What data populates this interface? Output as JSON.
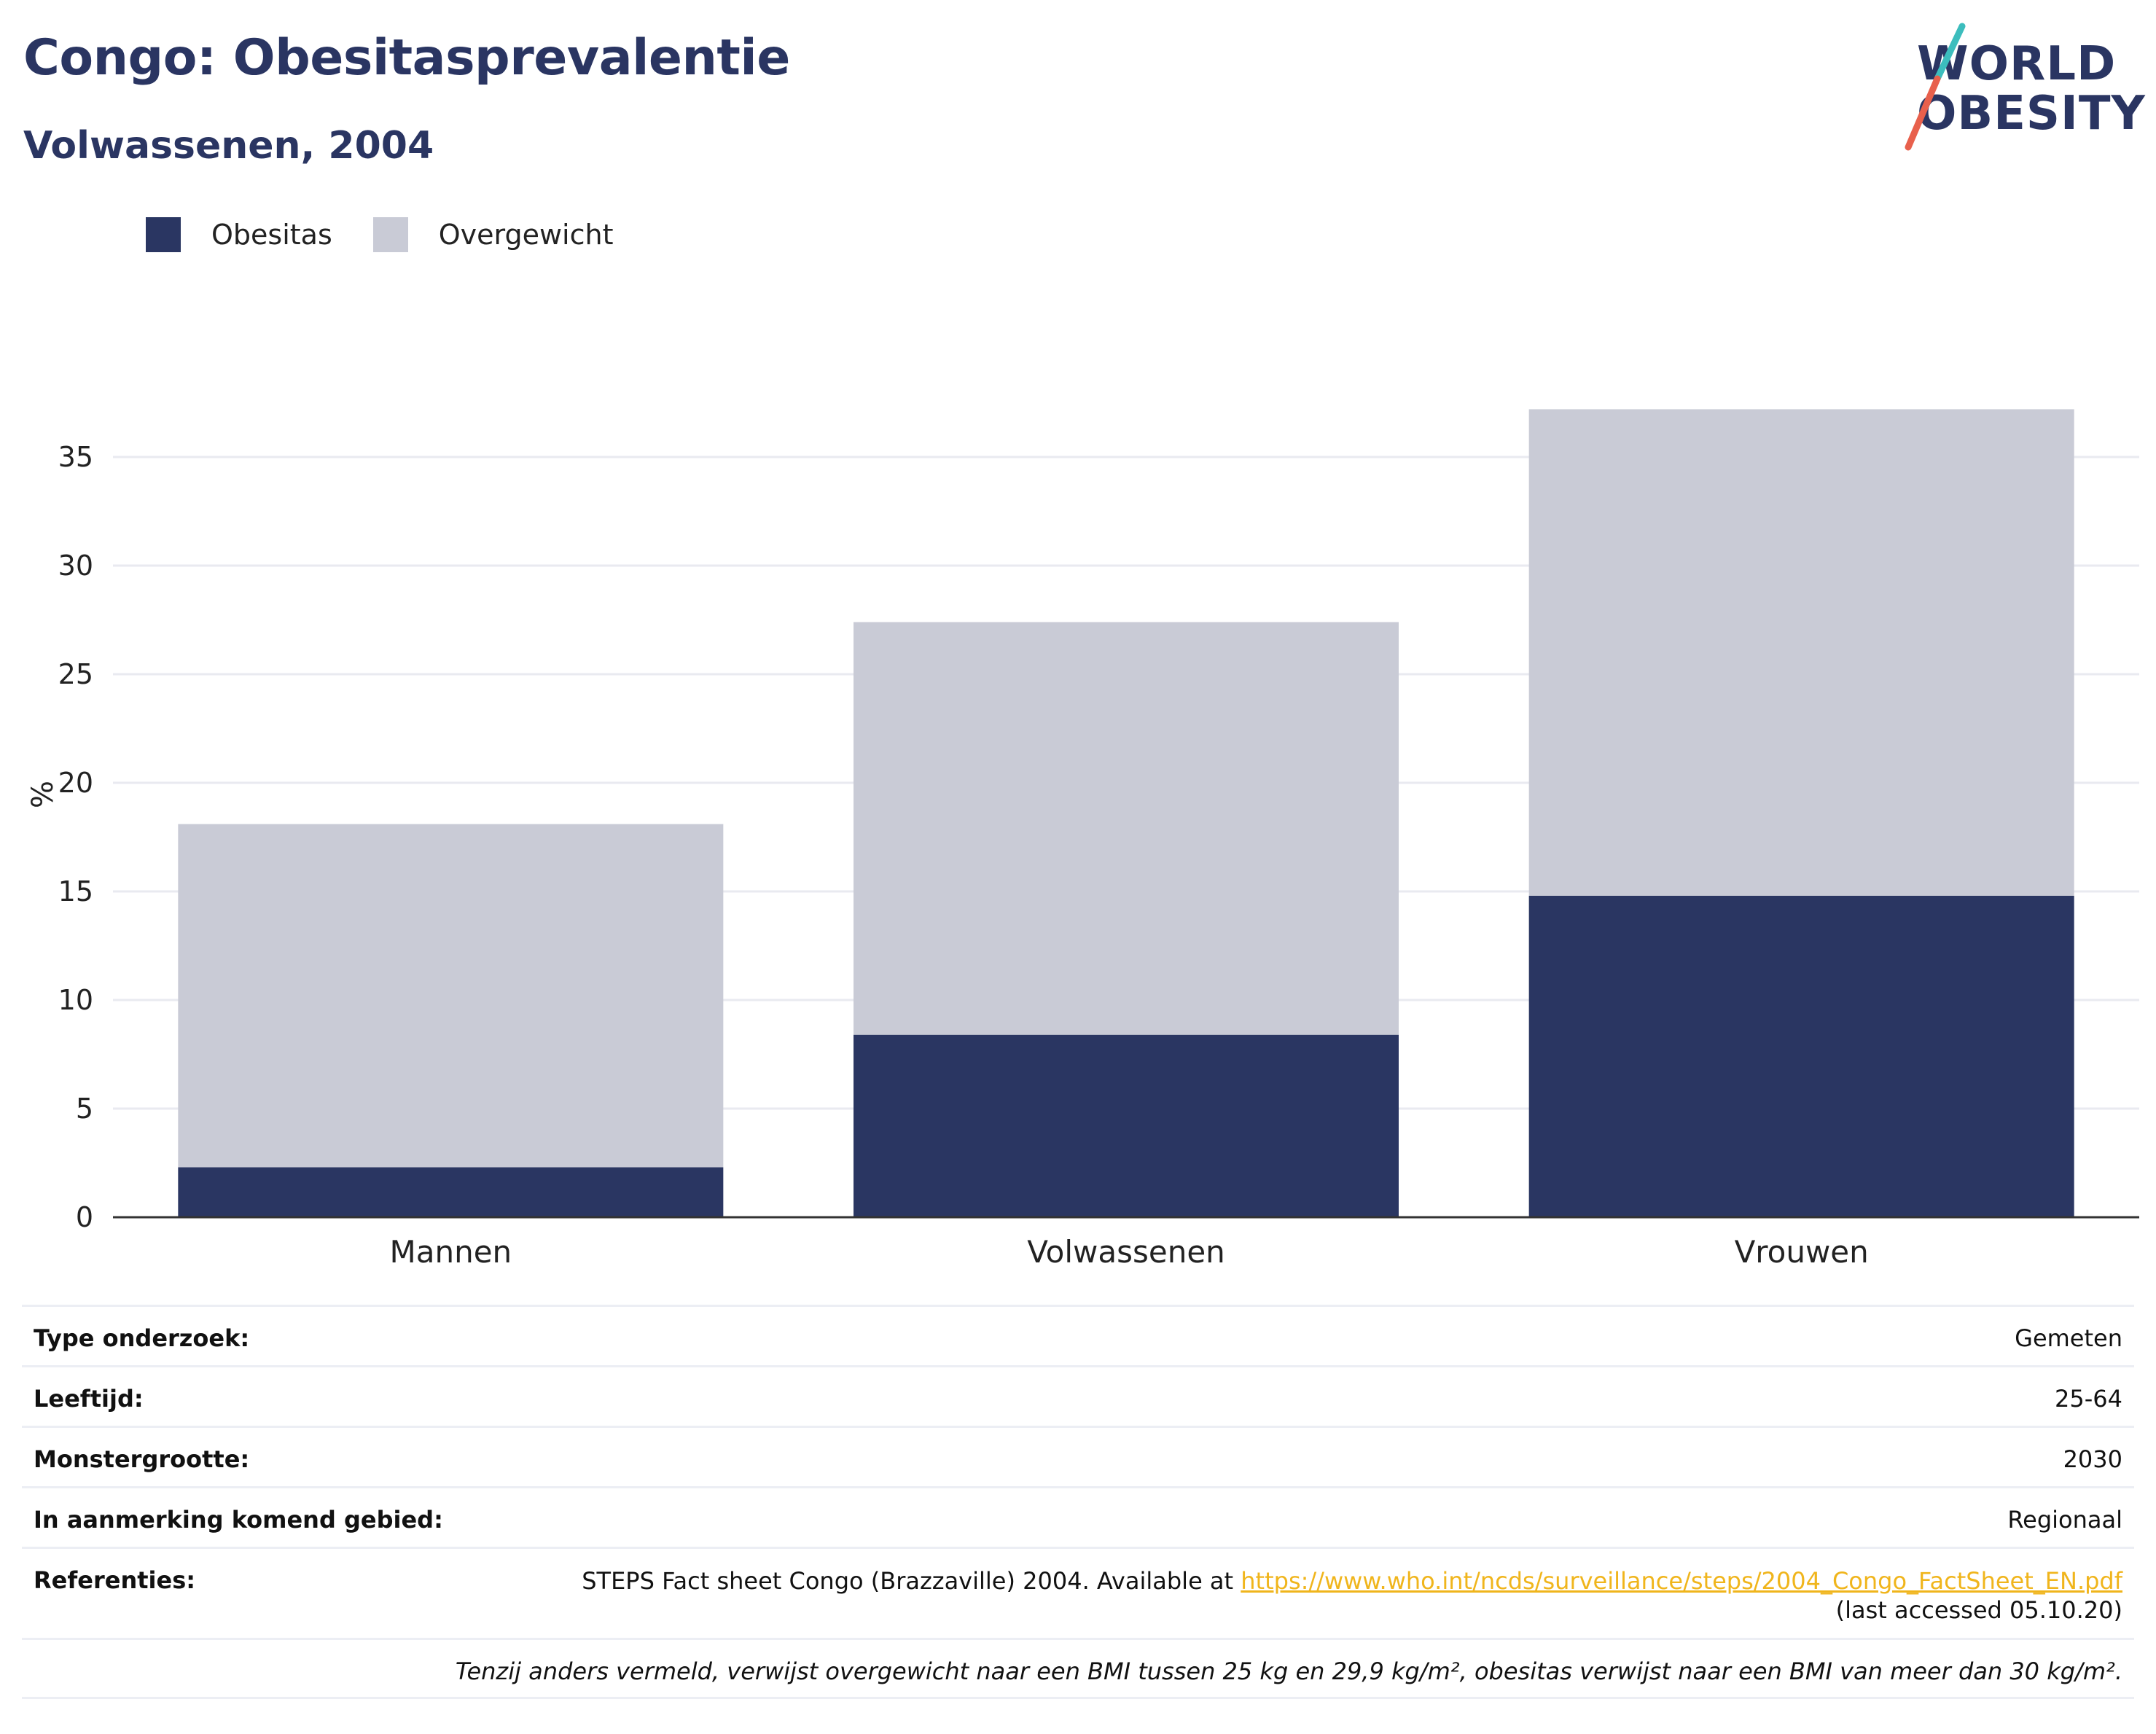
{
  "header": {
    "title": "Congo: Obesitasprevalentie",
    "subtitle": "Volwassenen, 2004"
  },
  "logo": {
    "line1": "WORLD",
    "line2": "OBESITY"
  },
  "legend": [
    {
      "label": "Obesitas",
      "color": "#2a3662"
    },
    {
      "label": "Overgewicht",
      "color": "#c9cbd6"
    }
  ],
  "chart_data": {
    "type": "bar",
    "stacked": true,
    "categories": [
      "Mannen",
      "Volwassenen",
      "Vrouwen"
    ],
    "series": [
      {
        "name": "Obesitas",
        "values": [
          2.3,
          8.4,
          14.8
        ],
        "color": "#2a3662"
      },
      {
        "name": "Overgewicht",
        "values": [
          15.8,
          19.0,
          22.4
        ],
        "color": "#c9cbd6"
      }
    ],
    "ylabel": "%",
    "ylim": [
      0,
      37.3
    ],
    "yticks": [
      0,
      5,
      10,
      15,
      20,
      25,
      30,
      35
    ],
    "grid": true,
    "legend_position": "top-left"
  },
  "info": {
    "rows": [
      {
        "label": "Type onderzoek:",
        "value": "Gemeten"
      },
      {
        "label": "Leeftijd:",
        "value": "25-64"
      },
      {
        "label": "Monstergrootte:",
        "value": "2030"
      },
      {
        "label": "In aanmerking komend gebied:",
        "value": "Regionaal"
      }
    ],
    "reference": {
      "label": "Referenties:",
      "text_before": "STEPS Fact sheet Congo (Brazzaville) 2004. Available at ",
      "link": "https://www.who.int/ncds/surveillance/steps/2004_Congo_FactSheet_EN.pdf",
      "text_after": "(last accessed 05.10.20)"
    },
    "note": "Tenzij anders vermeld, verwijst overgewicht naar een BMI tussen 25 kg en 29,9 kg/m², obesitas verwijst naar een BMI van meer dan 30 kg/m²."
  }
}
